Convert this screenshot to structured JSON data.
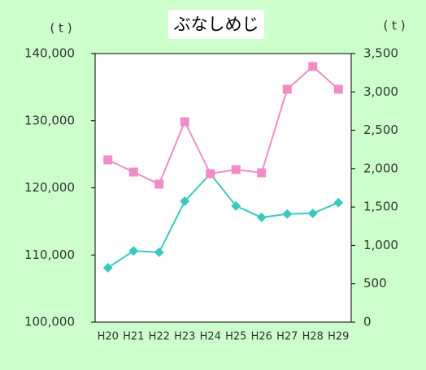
{
  "chart_data": {
    "type": "line",
    "title": "ぶなしめじ",
    "y_label": "( t )",
    "y2_label": "( t )",
    "categories": [
      "H20",
      "H21",
      "H22",
      "H23",
      "H24",
      "H25",
      "H26",
      "H27",
      "H28",
      "H29"
    ],
    "series": [
      {
        "color": "#3cc8c0",
        "marker": "diamond",
        "values": [
          108100,
          110600,
          110400,
          118000,
          122100,
          117300,
          115600,
          116100,
          116200,
          117800
        ]
      },
      {
        "color": "#f08cc8",
        "marker": "square",
        "axis": "y2",
        "values": [
          2115,
          1956,
          1798,
          2612,
          1935,
          1988,
          1946,
          3035,
          3331,
          3035
        ]
      }
    ],
    "ylim": [
      100000,
      140000
    ],
    "yticks": [
      {
        "value": 100000,
        "label": "100,000"
      },
      {
        "value": 110000,
        "label": "110,000"
      },
      {
        "value": 120000,
        "label": "120,000"
      },
      {
        "value": 130000,
        "label": "130,000"
      },
      {
        "value": 140000,
        "label": "140,000"
      }
    ],
    "y2lim": [
      0,
      3500
    ],
    "y2ticks": [
      0,
      500,
      {
        "value": 1000,
        "label": "1,000"
      },
      {
        "value": 1500,
        "label": "1,500"
      },
      {
        "value": 2000,
        "label": "2,000"
      },
      {
        "value": 2500,
        "label": "2,500"
      },
      {
        "value": 3000,
        "label": "3,000"
      },
      {
        "value": 3500,
        "label": "3,500"
      }
    ],
    "grid": false
  }
}
